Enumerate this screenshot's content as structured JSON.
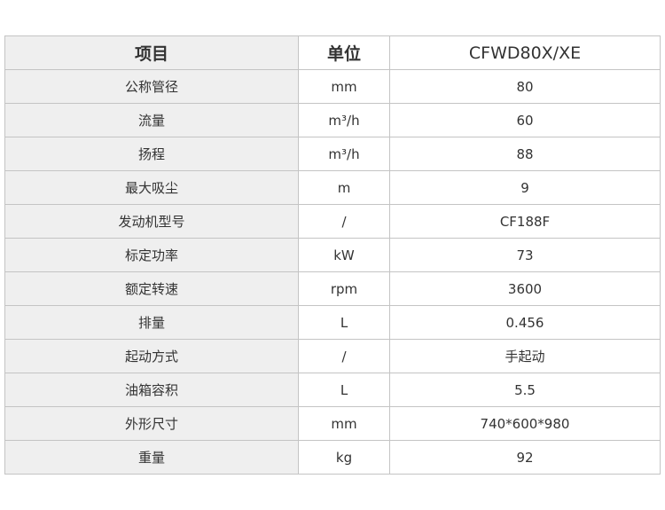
{
  "header": {
    "item": "项目",
    "unit": "单位",
    "model": "CFWD80X/XE"
  },
  "rows": [
    {
      "item": "公称管径",
      "unit": "mm",
      "value": "80"
    },
    {
      "item": "流量",
      "unit": "m³/h",
      "value": "60"
    },
    {
      "item": "扬程",
      "unit": "m³/h",
      "value": "88"
    },
    {
      "item": "最大吸尘",
      "unit": "m",
      "value": "9"
    },
    {
      "item": "发动机型号",
      "unit": "/",
      "value": "CF188F"
    },
    {
      "item": "标定功率",
      "unit": "kW",
      "value": "73"
    },
    {
      "item": "额定转速",
      "unit": "rpm",
      "value": "3600"
    },
    {
      "item": "排量",
      "unit": "L",
      "value": "0.456"
    },
    {
      "item": "起动方式",
      "unit": "/",
      "value": "手起动"
    },
    {
      "item": "油箱容积",
      "unit": "L",
      "value": "5.5"
    },
    {
      "item": "外形尺寸",
      "unit": "mm",
      "value": "740*600*980"
    },
    {
      "item": "重量",
      "unit": "kg",
      "value": "92"
    }
  ]
}
